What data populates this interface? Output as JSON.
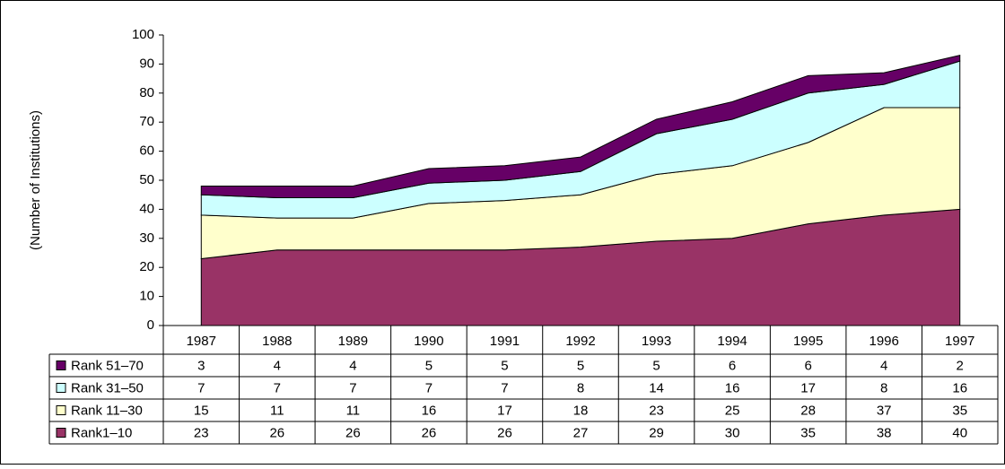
{
  "chart_data": {
    "type": "area",
    "stacked": true,
    "y_label": "(Number of Institutions)",
    "categories": [
      "1987",
      "1988",
      "1989",
      "1990",
      "1991",
      "1992",
      "1993",
      "1994",
      "1995",
      "1996",
      "1997"
    ],
    "series": [
      {
        "name": "Rank 51–70",
        "color": "#660066",
        "values": [
          3,
          4,
          4,
          5,
          5,
          5,
          5,
          6,
          6,
          4,
          2
        ]
      },
      {
        "name": "Rank 31–50",
        "color": "#ccffff",
        "values": [
          7,
          7,
          7,
          7,
          7,
          8,
          14,
          16,
          17,
          8,
          16
        ]
      },
      {
        "name": "Rank 11–30",
        "color": "#ffffcc",
        "values": [
          15,
          11,
          11,
          16,
          17,
          18,
          23,
          25,
          28,
          37,
          35
        ]
      },
      {
        "name": "Rank1–10",
        "color": "#993366",
        "values": [
          23,
          26,
          26,
          26,
          26,
          27,
          29,
          30,
          35,
          38,
          40
        ]
      }
    ],
    "ylim": [
      0,
      100
    ],
    "yticks": [
      0,
      10,
      20,
      30,
      40,
      50,
      60,
      70,
      80,
      90,
      100
    ]
  }
}
